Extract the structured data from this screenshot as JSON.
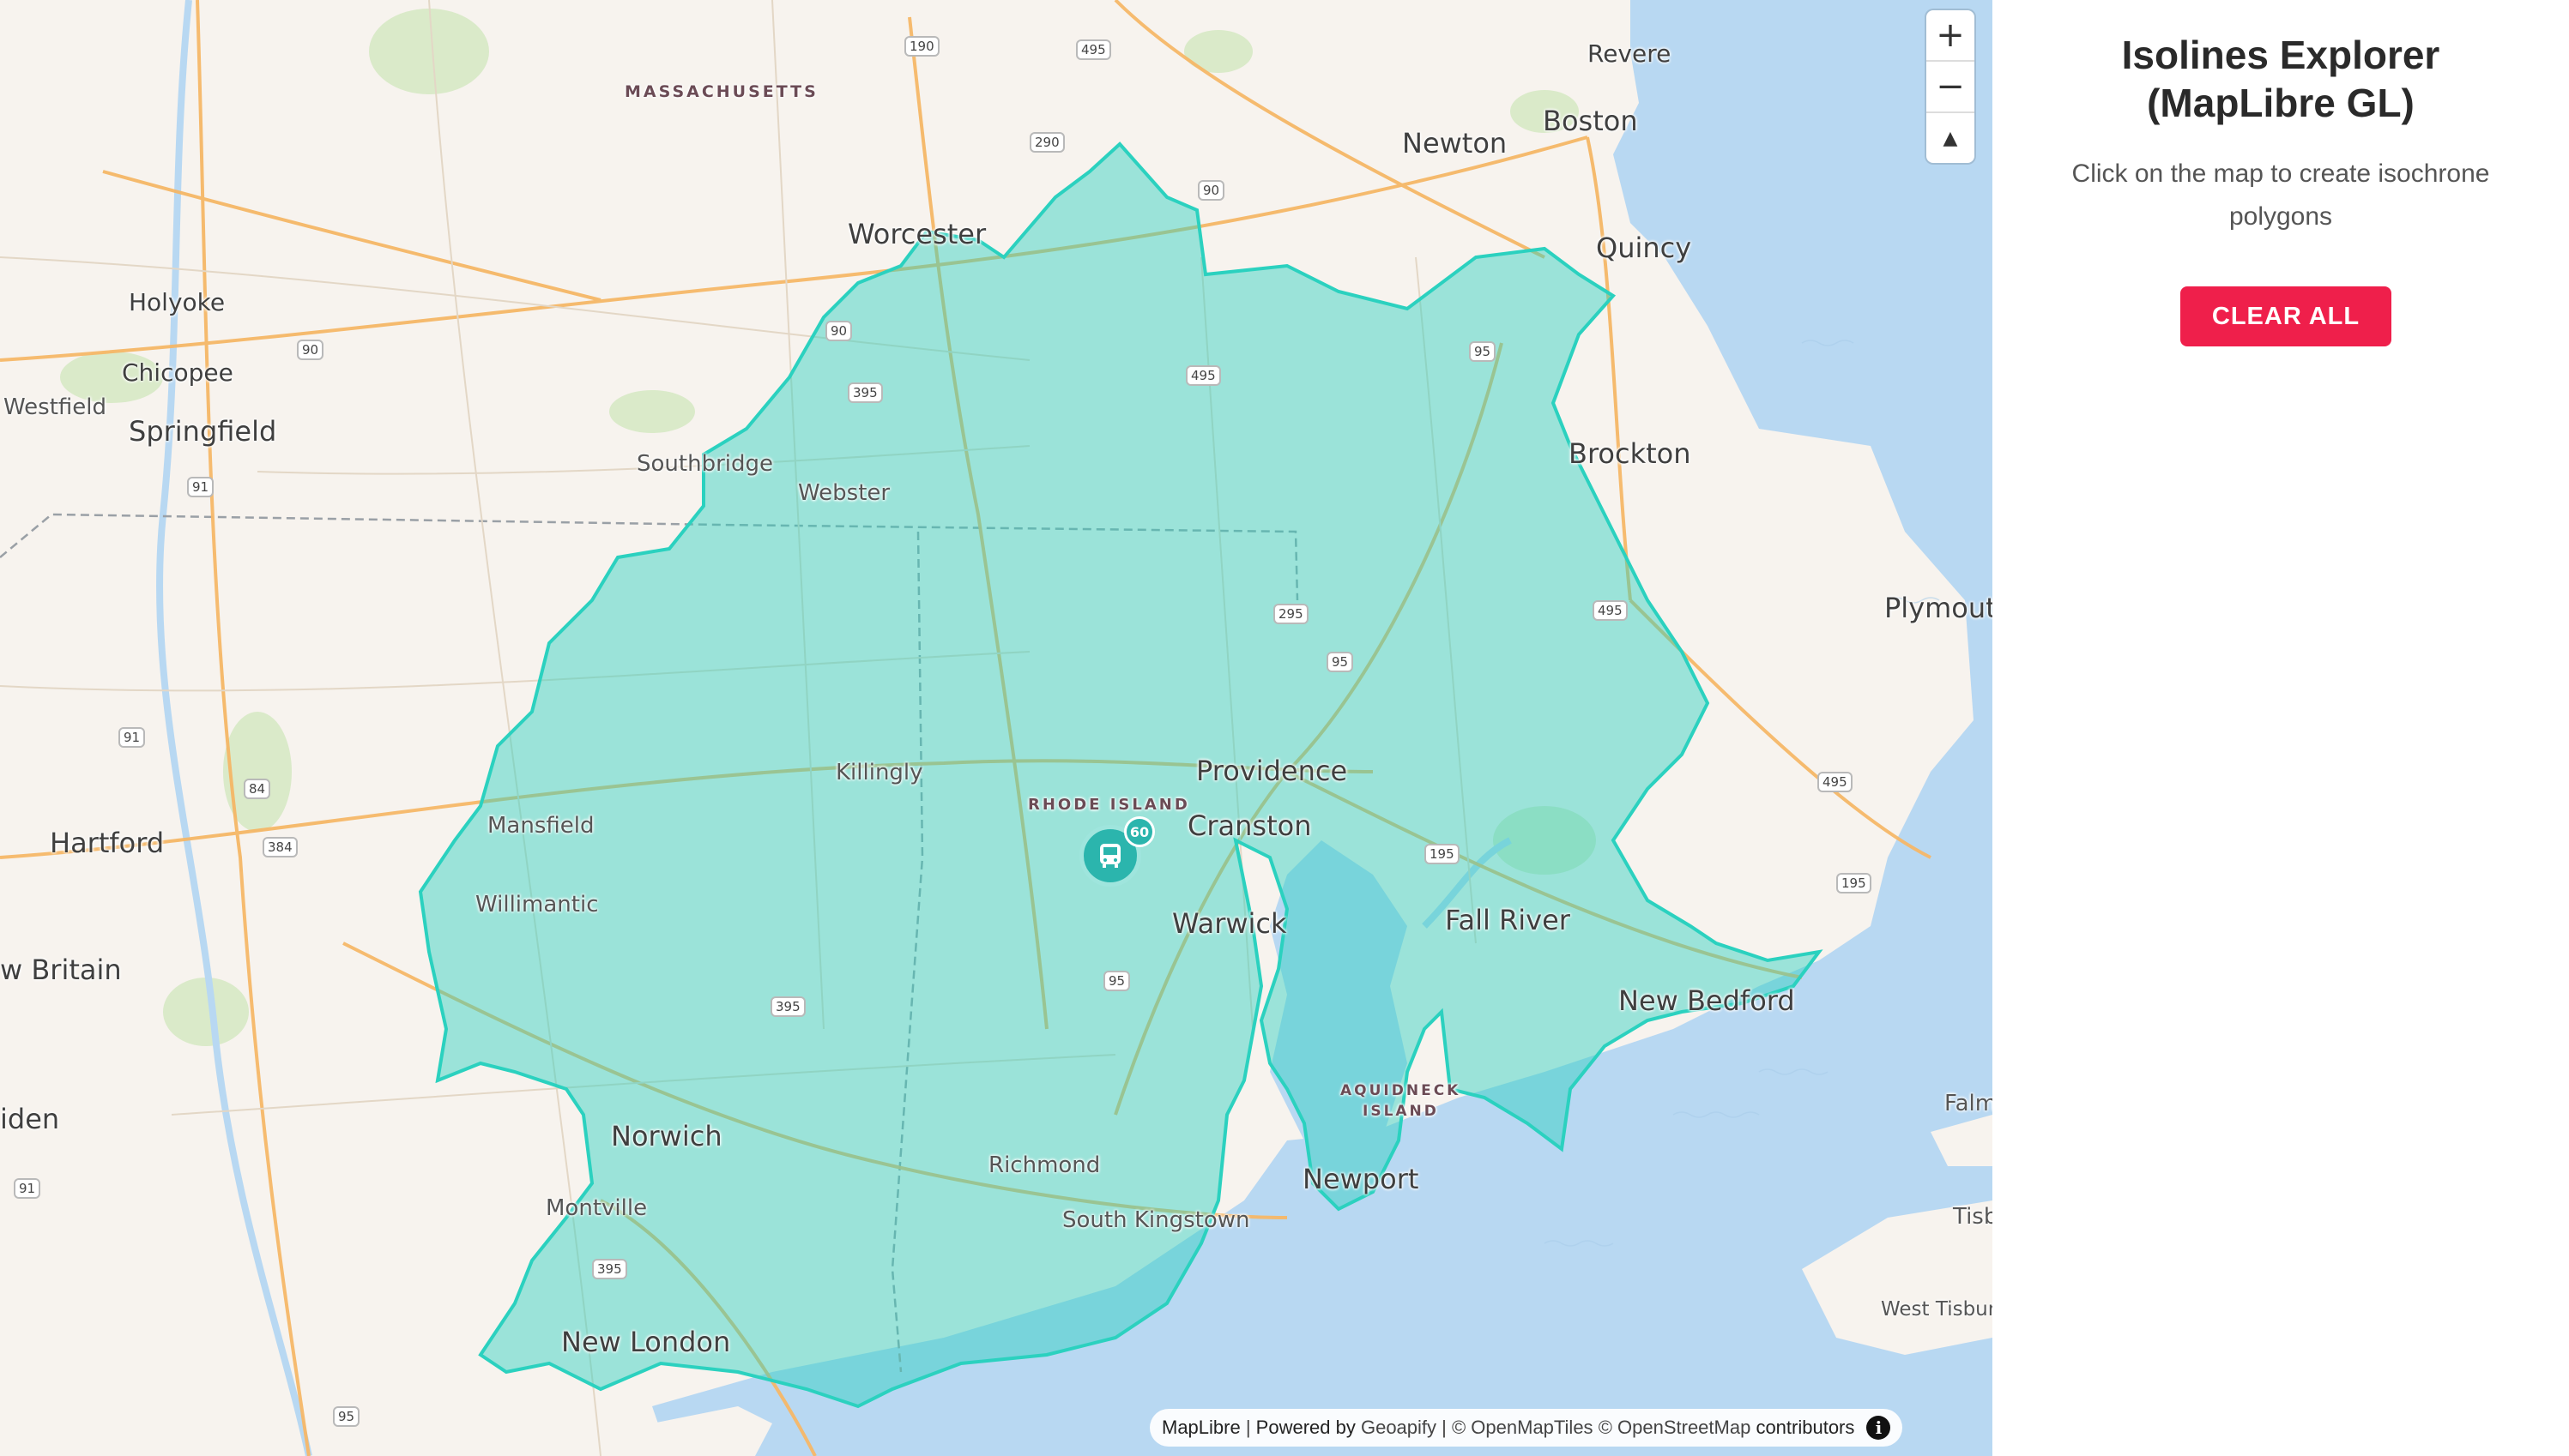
{
  "panel": {
    "title_line1": "Isolines Explorer",
    "title_line2": "(MapLibre GL)",
    "subtitle": "Click on the map to create isochrone polygons",
    "clear_button": "CLEAR ALL"
  },
  "map": {
    "zoom_in": "+",
    "zoom_out": "−",
    "compass": "▲",
    "marker_badge": "60",
    "marker_icon": "bus-icon",
    "isochrone_color": "#2bd1bf",
    "water_color": "#b8d8f2",
    "labels": {
      "massachusetts": "MASSACHUSETTS",
      "rhode_island": "RHODE ISLAND",
      "aquidneck": "AQUIDNECK",
      "aquidneck2": "ISLAND",
      "revere": "Revere",
      "boston": "Boston",
      "newton": "Newton",
      "worcester": "Worcester",
      "quincy": "Quincy",
      "holyoke": "Holyoke",
      "chicopee": "Chicopee",
      "westfield": "Westfield",
      "springfield": "Springfield",
      "southbridge": "Southbridge",
      "webster": "Webster",
      "brockton": "Brockton",
      "plymouth": "Plymout",
      "providence": "Providence",
      "cranston": "Cranston",
      "killingly": "Killingly",
      "mansfield": "Mansfield",
      "hartford": "Hartford",
      "willimantic": "Willimantic",
      "warwick": "Warwick",
      "fall_river": "Fall River",
      "new_bedford": "New Bedford",
      "new_britain": "w Britain",
      "norwich": "Norwich",
      "meriden": "iden",
      "richmond": "Richmond",
      "south_kingstown": "South Kingstown",
      "newport": "Newport",
      "montville": "Montville",
      "new_london": "New London",
      "falm": "Falm",
      "tisb": "Tisb",
      "west_tisbury": "West Tisbur"
    },
    "shields": {
      "s190": "190",
      "s495a": "495",
      "s290": "290",
      "s90a": "90",
      "s90b": "90",
      "s90c": "90",
      "s395a": "395",
      "s495b": "495",
      "s95a": "95",
      "s91a": "91",
      "s91b": "91",
      "s84": "84",
      "s384": "384",
      "s295": "295",
      "s95b": "95",
      "s495c": "495",
      "s495d": "495",
      "s195a": "195",
      "s195b": "195",
      "s95c": "95",
      "s395b": "395",
      "s395c": "395",
      "s95d": "95",
      "s91c": "91"
    },
    "attribution": {
      "maplibre": "MapLibre",
      "sep1": " | ",
      "powered": "Powered by ",
      "geoapify": "Geoapify",
      "sep2": " | ",
      "omt": "© OpenMapTiles",
      "sep3": " ",
      "osm": "© OpenStreetMap",
      "contributors": " contributors",
      "info": "i"
    }
  }
}
